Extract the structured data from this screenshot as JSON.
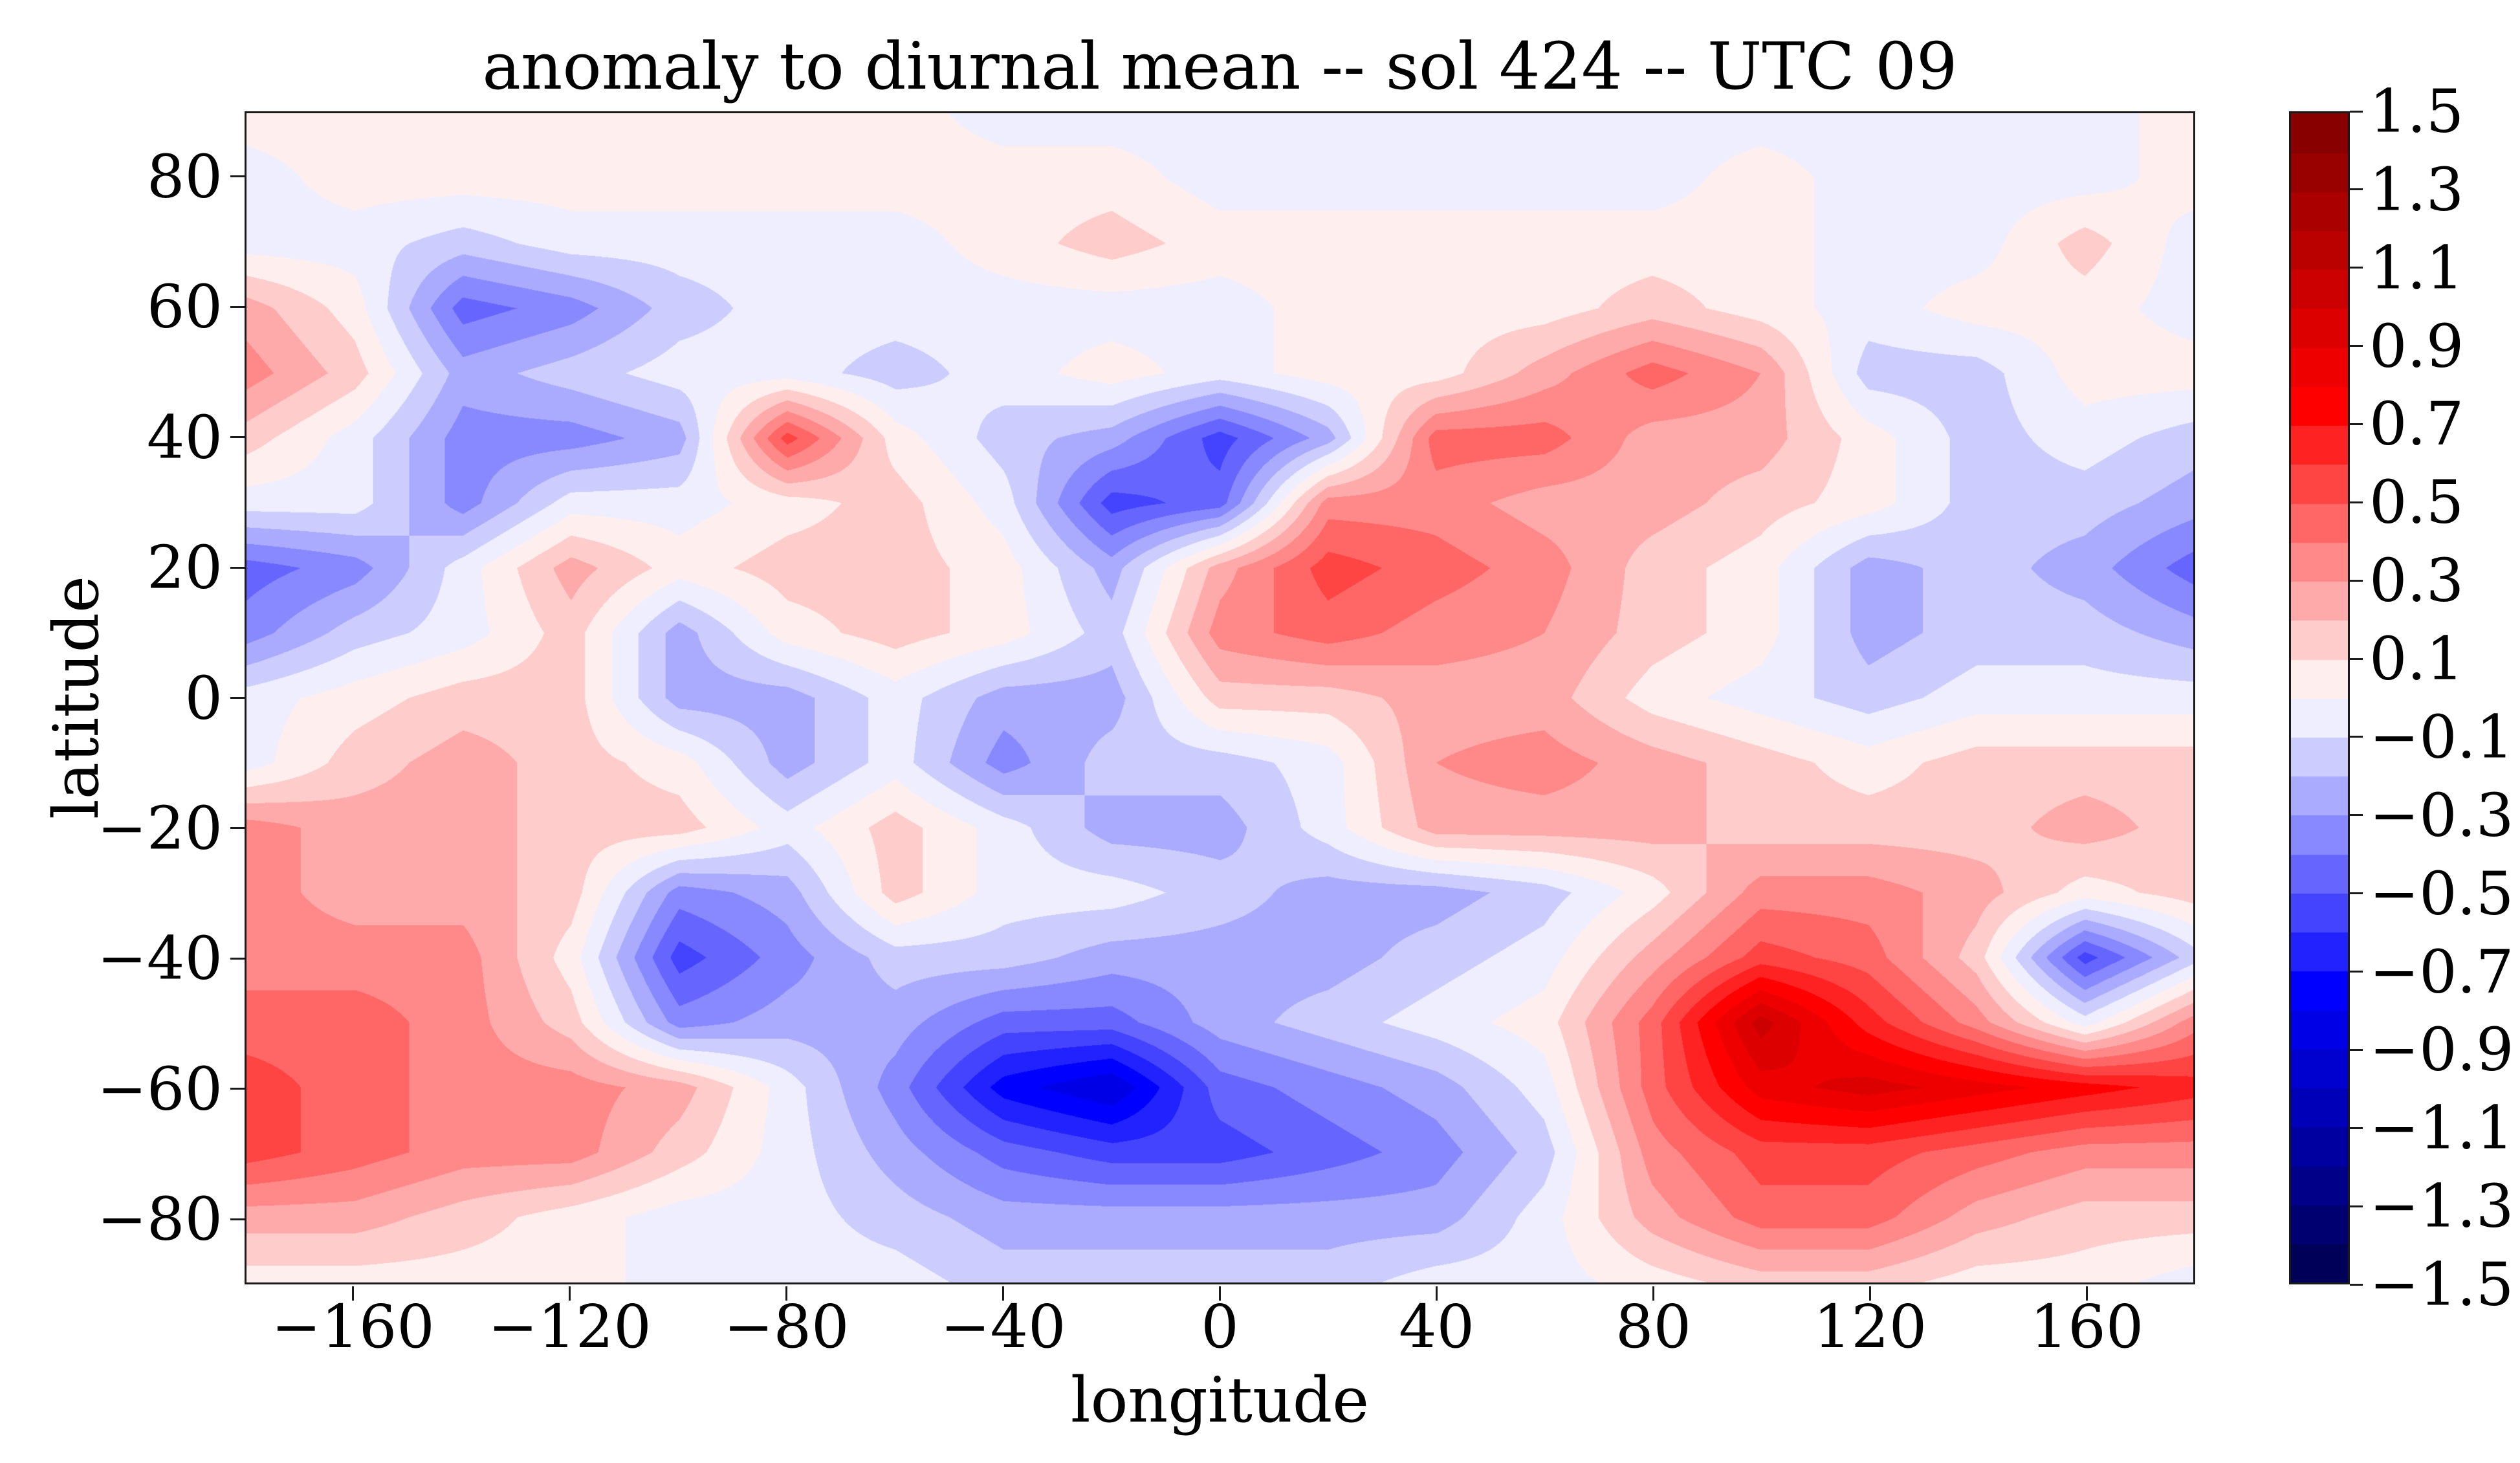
{
  "title": "anomaly to diurnal mean -- sol 424 -- UTC 09",
  "xlabel": "longitude",
  "ylabel": "latitude",
  "x_axis": {
    "ticks": [
      -160,
      -120,
      -80,
      -40,
      0,
      40,
      80,
      120,
      160
    ]
  },
  "y_axis": {
    "ticks": [
      80,
      60,
      40,
      20,
      0,
      -20,
      -40,
      -60,
      -80
    ]
  },
  "colorbar": {
    "ticks": [
      1.5,
      1.3,
      1.1,
      0.9,
      0.7,
      0.5,
      0.3,
      0.1,
      -0.1,
      -0.3,
      -0.5,
      -0.7,
      -0.9,
      -1.1,
      -1.3,
      -1.5
    ],
    "vmin": -1.5,
    "vmax": 1.5,
    "n_bands": 30
  },
  "colors": {
    "colormap": "seismic",
    "background": "#ffffff",
    "spine": "#1a1a1a",
    "text": "#000000"
  },
  "chart_data": {
    "type": "heatmap",
    "rendering": "filled-contour",
    "title": "anomaly to diurnal mean -- sol 424 -- UTC 09",
    "xlabel": "longitude",
    "ylabel": "latitude",
    "xlim": [
      -180,
      180
    ],
    "ylim": [
      -90,
      90
    ],
    "levels_min": -1.5,
    "levels_max": 1.5,
    "level_step": 0.1,
    "grid": false,
    "x": [
      -180,
      -160,
      -140,
      -120,
      -100,
      -80,
      -60,
      -40,
      -20,
      0,
      20,
      40,
      60,
      80,
      100,
      120,
      140,
      160,
      180
    ],
    "y": [
      90,
      80,
      70,
      60,
      50,
      40,
      30,
      20,
      10,
      0,
      -10,
      -20,
      -30,
      -40,
      -50,
      -60,
      -70,
      -80,
      -90
    ],
    "values": [
      [
        0.05,
        0.05,
        0.05,
        0.05,
        0.05,
        0.05,
        0.05,
        -0.05,
        -0.05,
        -0.05,
        -0.05,
        -0.05,
        -0.05,
        -0.05,
        -0.05,
        -0.05,
        -0.05,
        -0.05,
        0.05
      ],
      [
        -0.05,
        0.05,
        0.05,
        0.05,
        0.05,
        0.05,
        0.05,
        0.05,
        0.05,
        -0.05,
        -0.05,
        -0.05,
        -0.05,
        -0.05,
        0.05,
        -0.05,
        -0.05,
        -0.05,
        0.05
      ],
      [
        -0.05,
        -0.05,
        -0.15,
        -0.05,
        -0.05,
        -0.05,
        -0.05,
        0.05,
        0.15,
        0.05,
        0.05,
        0.05,
        0.05,
        0.05,
        0.05,
        -0.05,
        -0.05,
        0.15,
        -0.05
      ],
      [
        0.25,
        0.05,
        -0.45,
        -0.35,
        -0.15,
        -0.05,
        -0.05,
        -0.05,
        -0.05,
        -0.05,
        0.05,
        0.05,
        0.05,
        0.15,
        0.05,
        -0.05,
        0.05,
        0.05,
        -0.05
      ],
      [
        0.35,
        0.15,
        -0.25,
        -0.15,
        -0.05,
        -0.05,
        -0.15,
        -0.05,
        0.05,
        -0.05,
        0.05,
        0.05,
        0.25,
        0.45,
        0.3,
        -0.15,
        -0.15,
        0.05,
        0.05
      ],
      [
        0.15,
        -0.05,
        -0.35,
        -0.35,
        -0.25,
        0.55,
        0.05,
        -0.15,
        -0.25,
        -0.55,
        -0.25,
        0.45,
        0.45,
        0.25,
        0.25,
        0.05,
        -0.15,
        -0.05,
        -0.15
      ],
      [
        -0.05,
        -0.05,
        -0.35,
        -0.05,
        -0.05,
        0.05,
        0.15,
        -0.05,
        -0.55,
        -0.45,
        0.35,
        0.35,
        0.25,
        0.25,
        0.15,
        0.05,
        -0.15,
        -0.15,
        -0.25
      ],
      [
        -0.45,
        -0.35,
        -0.05,
        0.25,
        0.05,
        0.15,
        0.15,
        0.05,
        -0.25,
        0.25,
        0.55,
        0.45,
        0.35,
        0.15,
        0.05,
        -0.25,
        -0.15,
        -0.25,
        -0.45
      ],
      [
        -0.35,
        -0.15,
        -0.05,
        0.15,
        -0.25,
        0.05,
        0.15,
        0.05,
        -0.15,
        0.35,
        0.45,
        0.35,
        0.3,
        0.15,
        0.05,
        -0.25,
        -0.15,
        -0.15,
        -0.25
      ],
      [
        -0.05,
        0.05,
        0.15,
        0.15,
        -0.25,
        -0.25,
        -0.05,
        -0.25,
        -0.25,
        0.15,
        0.15,
        0.25,
        0.25,
        0.05,
        -0.05,
        -0.15,
        -0.05,
        -0.05,
        -0.05
      ],
      [
        -0.05,
        0.15,
        0.25,
        0.15,
        0.05,
        -0.25,
        -0.05,
        -0.35,
        -0.15,
        -0.15,
        -0.05,
        0.3,
        0.35,
        0.25,
        0.15,
        0.05,
        0.15,
        0.15,
        0.15
      ],
      [
        0.35,
        0.25,
        0.25,
        0.15,
        0.15,
        -0.05,
        0.15,
        -0.05,
        -0.25,
        -0.25,
        -0.05,
        0.25,
        0.25,
        0.25,
        0.15,
        0.15,
        0.15,
        0.25,
        0.15
      ],
      [
        0.35,
        0.25,
        0.25,
        0.15,
        -0.35,
        -0.25,
        0.15,
        -0.05,
        -0.05,
        -0.15,
        -0.25,
        -0.25,
        -0.15,
        0.05,
        0.35,
        0.35,
        0.25,
        0.05,
        0.15
      ],
      [
        0.35,
        0.35,
        0.35,
        0.05,
        -0.55,
        -0.35,
        -0.15,
        -0.15,
        -0.25,
        -0.25,
        -0.25,
        -0.15,
        -0.05,
        0.25,
        0.55,
        0.45,
        0.15,
        -0.55,
        -0.15
      ],
      [
        0.45,
        0.45,
        0.35,
        0.15,
        -0.35,
        -0.25,
        -0.25,
        -0.45,
        -0.45,
        -0.25,
        -0.15,
        -0.05,
        0.05,
        0.45,
        1.05,
        0.65,
        0.35,
        -0.05,
        0.35
      ],
      [
        0.55,
        0.45,
        0.35,
        0.35,
        0.25,
        -0.05,
        -0.35,
        -0.75,
        -0.9,
        -0.45,
        -0.35,
        -0.25,
        -0.05,
        0.45,
        0.85,
        0.95,
        0.85,
        0.75,
        0.65
      ],
      [
        0.55,
        0.45,
        0.35,
        0.35,
        0.15,
        -0.05,
        -0.25,
        -0.45,
        -0.55,
        -0.55,
        -0.45,
        -0.35,
        -0.15,
        0.35,
        0.55,
        0.55,
        0.45,
        0.35,
        0.35
      ],
      [
        0.25,
        0.25,
        0.15,
        0.05,
        -0.05,
        -0.05,
        -0.15,
        -0.25,
        -0.25,
        -0.25,
        -0.25,
        -0.25,
        -0.05,
        0.25,
        0.45,
        0.45,
        0.25,
        0.15,
        0.15
      ],
      [
        0.05,
        0.05,
        0.05,
        0.05,
        -0.05,
        -0.05,
        -0.05,
        -0.15,
        -0.15,
        -0.15,
        -0.15,
        -0.05,
        -0.05,
        0.05,
        0.15,
        0.15,
        0.05,
        0.05,
        -0.05
      ]
    ]
  }
}
